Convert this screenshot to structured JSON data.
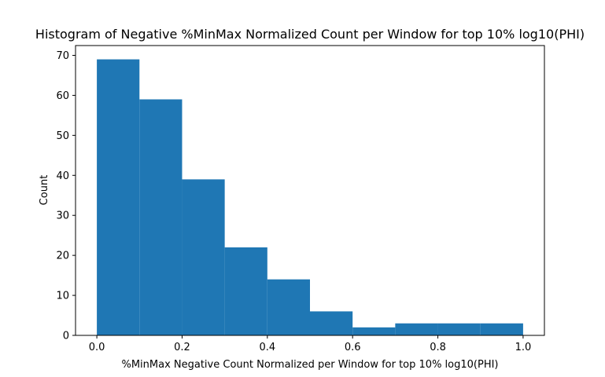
{
  "chart_data": {
    "type": "bar",
    "title": "Histogram of Negative %MinMax Normalized Count per Window for top 10% log10(PHI)",
    "xlabel": "%MinMax Negative Count Normalized per Window for top 10% log10(PHI)",
    "ylabel": "Count",
    "bins": [
      {
        "x0": 0.0,
        "x1": 0.1,
        "count": 69
      },
      {
        "x0": 0.1,
        "x1": 0.2,
        "count": 59
      },
      {
        "x0": 0.2,
        "x1": 0.3,
        "count": 39
      },
      {
        "x0": 0.3,
        "x1": 0.4,
        "count": 22
      },
      {
        "x0": 0.4,
        "x1": 0.5,
        "count": 14
      },
      {
        "x0": 0.5,
        "x1": 0.6,
        "count": 6
      },
      {
        "x0": 0.6,
        "x1": 0.7,
        "count": 2
      },
      {
        "x0": 0.7,
        "x1": 0.8,
        "count": 3
      },
      {
        "x0": 0.8,
        "x1": 0.9,
        "count": 3
      },
      {
        "x0": 0.9,
        "x1": 1.0,
        "count": 3
      }
    ],
    "xlim": [
      -0.05,
      1.05
    ],
    "ylim": [
      0,
      72.45
    ],
    "xticks": [
      0.0,
      0.2,
      0.4,
      0.6,
      0.8,
      1.0
    ],
    "xtick_labels": [
      "0.0",
      "0.2",
      "0.4",
      "0.6",
      "0.8",
      "1.0"
    ],
    "yticks": [
      0,
      10,
      20,
      30,
      40,
      50,
      60,
      70
    ],
    "ytick_labels": [
      "0",
      "10",
      "20",
      "30",
      "40",
      "50",
      "60",
      "70"
    ],
    "grid": false,
    "bar_color": "#1f77b4"
  }
}
